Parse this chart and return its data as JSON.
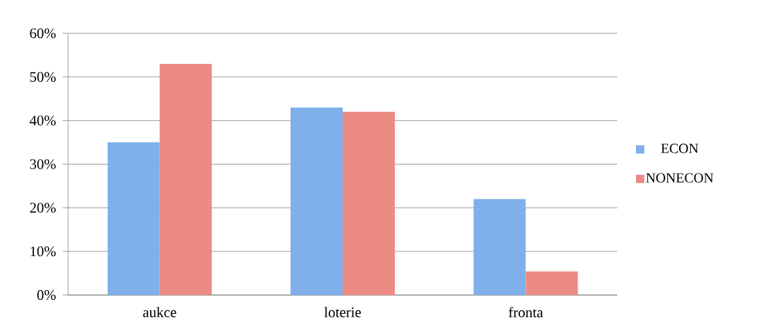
{
  "chart_data": {
    "type": "bar",
    "categories": [
      "aukce",
      "loterie",
      "fronta"
    ],
    "series": [
      {
        "name": "ECON",
        "color": "#7fb0ea",
        "values": [
          35,
          43,
          22
        ]
      },
      {
        "name": "NONECON",
        "color": "#ec8a84",
        "values": [
          53,
          42,
          5.4
        ]
      }
    ],
    "ylim": [
      0,
      60
    ],
    "yticks": [
      {
        "value": 0,
        "label": "0%"
      },
      {
        "value": 10,
        "label": "10%"
      },
      {
        "value": 20,
        "label": "20%"
      },
      {
        "value": 30,
        "label": "30%"
      },
      {
        "value": 40,
        "label": "40%"
      },
      {
        "value": 50,
        "label": "50%"
      },
      {
        "value": 60,
        "label": "60%"
      }
    ],
    "grid": "y",
    "legend": "right"
  }
}
